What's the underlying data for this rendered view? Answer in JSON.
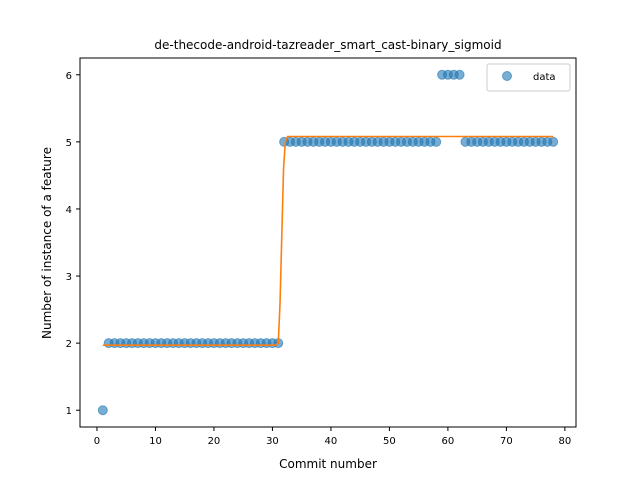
{
  "chart_data": {
    "type": "scatter",
    "title": "de-thecode-android-tazreader_smart_cast-binary_sigmoid",
    "xlabel": "Commit number",
    "ylabel": "Number of instance of a feature",
    "xlim": [
      -2.9,
      81.9
    ],
    "ylim": [
      0.75,
      6.25
    ],
    "xticks": [
      0,
      10,
      20,
      30,
      40,
      50,
      60,
      70,
      80
    ],
    "yticks": [
      1,
      2,
      3,
      4,
      5,
      6
    ],
    "grid": false,
    "legend": {
      "position": "top-right",
      "entries": [
        "data"
      ]
    },
    "series": [
      {
        "name": "data",
        "kind": "scatter",
        "color": "#1f77b4",
        "x": [
          1,
          2,
          3,
          4,
          5,
          6,
          7,
          8,
          9,
          10,
          11,
          12,
          13,
          14,
          15,
          16,
          17,
          18,
          19,
          20,
          21,
          22,
          23,
          24,
          25,
          26,
          27,
          28,
          29,
          30,
          31,
          32,
          33,
          34,
          35,
          36,
          37,
          38,
          39,
          40,
          41,
          42,
          43,
          44,
          45,
          46,
          47,
          48,
          49,
          50,
          51,
          52,
          53,
          54,
          55,
          56,
          57,
          58,
          59,
          60,
          61,
          62,
          63,
          64,
          65,
          66,
          67,
          68,
          69,
          70,
          71,
          72,
          73,
          74,
          75,
          76,
          77,
          78
        ],
        "y": [
          1,
          2,
          2,
          2,
          2,
          2,
          2,
          2,
          2,
          2,
          2,
          2,
          2,
          2,
          2,
          2,
          2,
          2,
          2,
          2,
          2,
          2,
          2,
          2,
          2,
          2,
          2,
          2,
          2,
          2,
          2,
          5,
          5,
          5,
          5,
          5,
          5,
          5,
          5,
          5,
          5,
          5,
          5,
          5,
          5,
          5,
          5,
          5,
          5,
          5,
          5,
          5,
          5,
          5,
          5,
          5,
          5,
          5,
          6,
          6,
          6,
          6,
          5,
          5,
          5,
          5,
          5,
          5,
          5,
          5,
          5,
          5,
          5,
          5,
          5,
          5,
          5,
          5
        ]
      },
      {
        "kind": "line",
        "color": "#ff7f0e",
        "x": [
          1,
          30.5,
          31.0,
          31.3,
          31.6,
          31.9,
          32.2,
          32.6,
          78
        ],
        "y": [
          1.97,
          1.97,
          2.0,
          2.6,
          3.6,
          4.6,
          5.0,
          5.08,
          5.08
        ]
      }
    ]
  }
}
